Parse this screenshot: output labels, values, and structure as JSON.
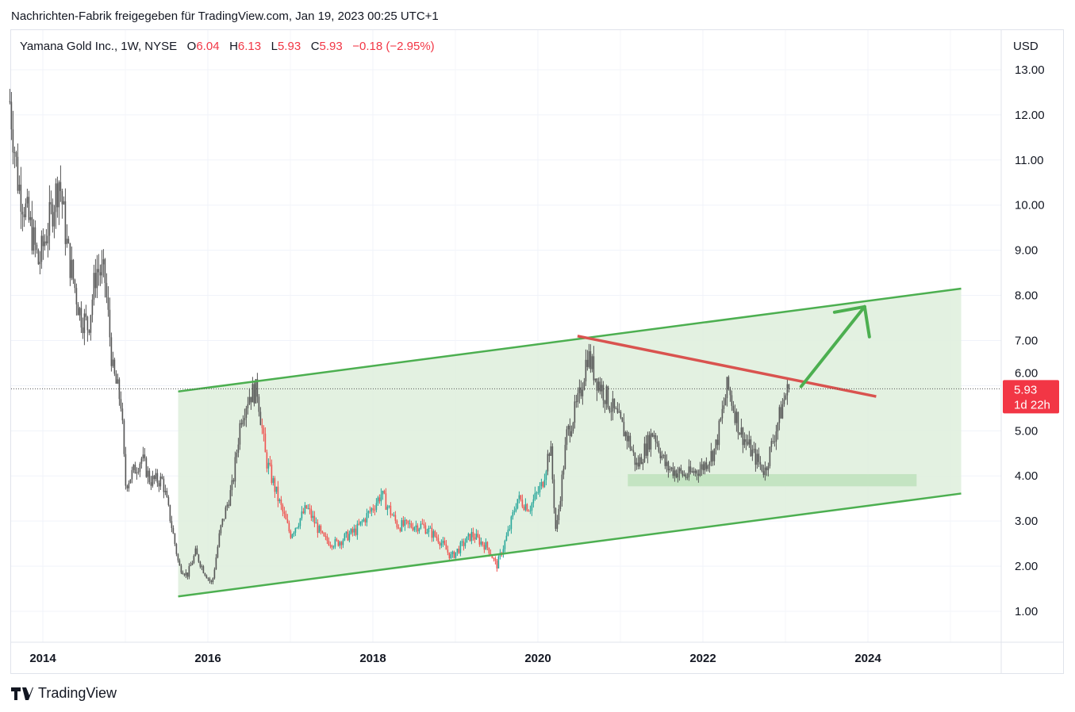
{
  "header": "Nachrichten-Fabrik freigegeben für TradingView.com, Jan 19, 2023 00:25 UTC+1",
  "legend": {
    "symbol": "Yamana Gold Inc., 1W, NYSE",
    "o_label": "O",
    "o": "6.04",
    "h_label": "H",
    "h": "6.13",
    "l_label": "L",
    "l": "5.93",
    "c_label": "C",
    "c": "5.93",
    "change": "−0.18 (−2.95%)"
  },
  "price_label": {
    "value": "5.93",
    "countdown": "1d 22h",
    "color": "#f23645"
  },
  "footer": {
    "brand": "TradingView"
  },
  "chart_data": {
    "type": "candlestick",
    "currency": "USD",
    "ylim": [
      0.3,
      13.9
    ],
    "yticks": [
      "1.00",
      "2.00",
      "3.00",
      "4.00",
      "5.00",
      "6.00",
      "7.00",
      "8.00",
      "9.00",
      "10.00",
      "11.00",
      "12.00",
      "13.00"
    ],
    "xticks": [
      "2014",
      "2016",
      "2018",
      "2020",
      "2022",
      "2024"
    ],
    "xlim": [
      2013.6,
      2025.6
    ],
    "price_path": [
      [
        2013.6,
        12.3
      ],
      [
        2013.7,
        10.5
      ],
      [
        2013.85,
        9.5
      ],
      [
        2013.95,
        8.7
      ],
      [
        2014.1,
        9.8
      ],
      [
        2014.2,
        10.6
      ],
      [
        2014.3,
        9.0
      ],
      [
        2014.45,
        7.6
      ],
      [
        2014.55,
        7.3
      ],
      [
        2014.65,
        8.6
      ],
      [
        2014.75,
        8.4
      ],
      [
        2014.85,
        6.3
      ],
      [
        2014.95,
        5.6
      ],
      [
        2015.0,
        3.8
      ],
      [
        2015.1,
        4.1
      ],
      [
        2015.2,
        4.4
      ],
      [
        2015.3,
        3.9
      ],
      [
        2015.45,
        3.9
      ],
      [
        2015.55,
        3.0
      ],
      [
        2015.65,
        2.0
      ],
      [
        2015.75,
        1.8
      ],
      [
        2015.85,
        2.3
      ],
      [
        2015.95,
        1.9
      ],
      [
        2016.05,
        1.6
      ],
      [
        2016.15,
        2.8
      ],
      [
        2016.3,
        3.8
      ],
      [
        2016.4,
        5.3
      ],
      [
        2016.5,
        5.8
      ],
      [
        2016.6,
        5.9
      ],
      [
        2016.7,
        4.4
      ],
      [
        2016.85,
        3.5
      ],
      [
        2017.0,
        2.7
      ],
      [
        2017.2,
        3.3
      ],
      [
        2017.4,
        2.6
      ],
      [
        2017.55,
        2.5
      ],
      [
        2017.8,
        2.8
      ],
      [
        2018.0,
        3.3
      ],
      [
        2018.1,
        3.6
      ],
      [
        2018.3,
        2.9
      ],
      [
        2018.6,
        2.9
      ],
      [
        2018.8,
        2.6
      ],
      [
        2018.95,
        2.2
      ],
      [
        2019.2,
        2.7
      ],
      [
        2019.4,
        2.4
      ],
      [
        2019.5,
        2.0
      ],
      [
        2019.65,
        2.8
      ],
      [
        2019.75,
        3.5
      ],
      [
        2019.9,
        3.3
      ],
      [
        2020.05,
        3.8
      ],
      [
        2020.15,
        4.7
      ],
      [
        2020.22,
        2.7
      ],
      [
        2020.35,
        4.9
      ],
      [
        2020.5,
        5.7
      ],
      [
        2020.6,
        6.7
      ],
      [
        2020.7,
        6.2
      ],
      [
        2020.9,
        5.5
      ],
      [
        2021.1,
        4.8
      ],
      [
        2021.2,
        4.2
      ],
      [
        2021.4,
        5.0
      ],
      [
        2021.55,
        4.2
      ],
      [
        2021.8,
        4.0
      ],
      [
        2022.0,
        4.2
      ],
      [
        2022.15,
        4.6
      ],
      [
        2022.3,
        6.0
      ],
      [
        2022.45,
        5.0
      ],
      [
        2022.6,
        4.5
      ],
      [
        2022.75,
        4.1
      ],
      [
        2022.85,
        4.8
      ],
      [
        2023.0,
        5.8
      ],
      [
        2023.05,
        5.93
      ]
    ],
    "last_price": 5.93,
    "drawings": {
      "channel_upper": [
        [
          2015.64,
          5.87
        ],
        [
          2025.13,
          8.15
        ]
      ],
      "channel_lower": [
        [
          2015.64,
          1.33
        ],
        [
          2025.13,
          3.61
        ]
      ],
      "resistance": [
        [
          2020.48,
          7.1
        ],
        [
          2024.1,
          5.76
        ]
      ],
      "support_zone": {
        "t": [
          2021.09,
          2024.59
        ],
        "p": [
          3.77,
          4.04
        ]
      },
      "arrow": [
        [
          2023.19,
          5.98
        ],
        [
          2023.96,
          7.75
        ]
      ],
      "colors": {
        "channel": "#4caf50",
        "fill": "#e0f0de",
        "resistance": "#d9534f",
        "support": "#c4e4c2",
        "up": "#26a69a",
        "down": "#ef5350",
        "neutral": "#555"
      }
    }
  }
}
